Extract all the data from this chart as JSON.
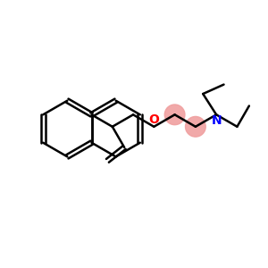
{
  "background_color": "#ffffff",
  "bond_color": "#000000",
  "oxygen_color": "#ff0000",
  "nitrogen_color": "#0000ff",
  "highlight_color": "#f0a0a0",
  "line_width": 1.8,
  "figsize": [
    3.0,
    3.0
  ],
  "dpi": 100,
  "xlim": [
    0,
    10
  ],
  "ylim": [
    0,
    10
  ]
}
